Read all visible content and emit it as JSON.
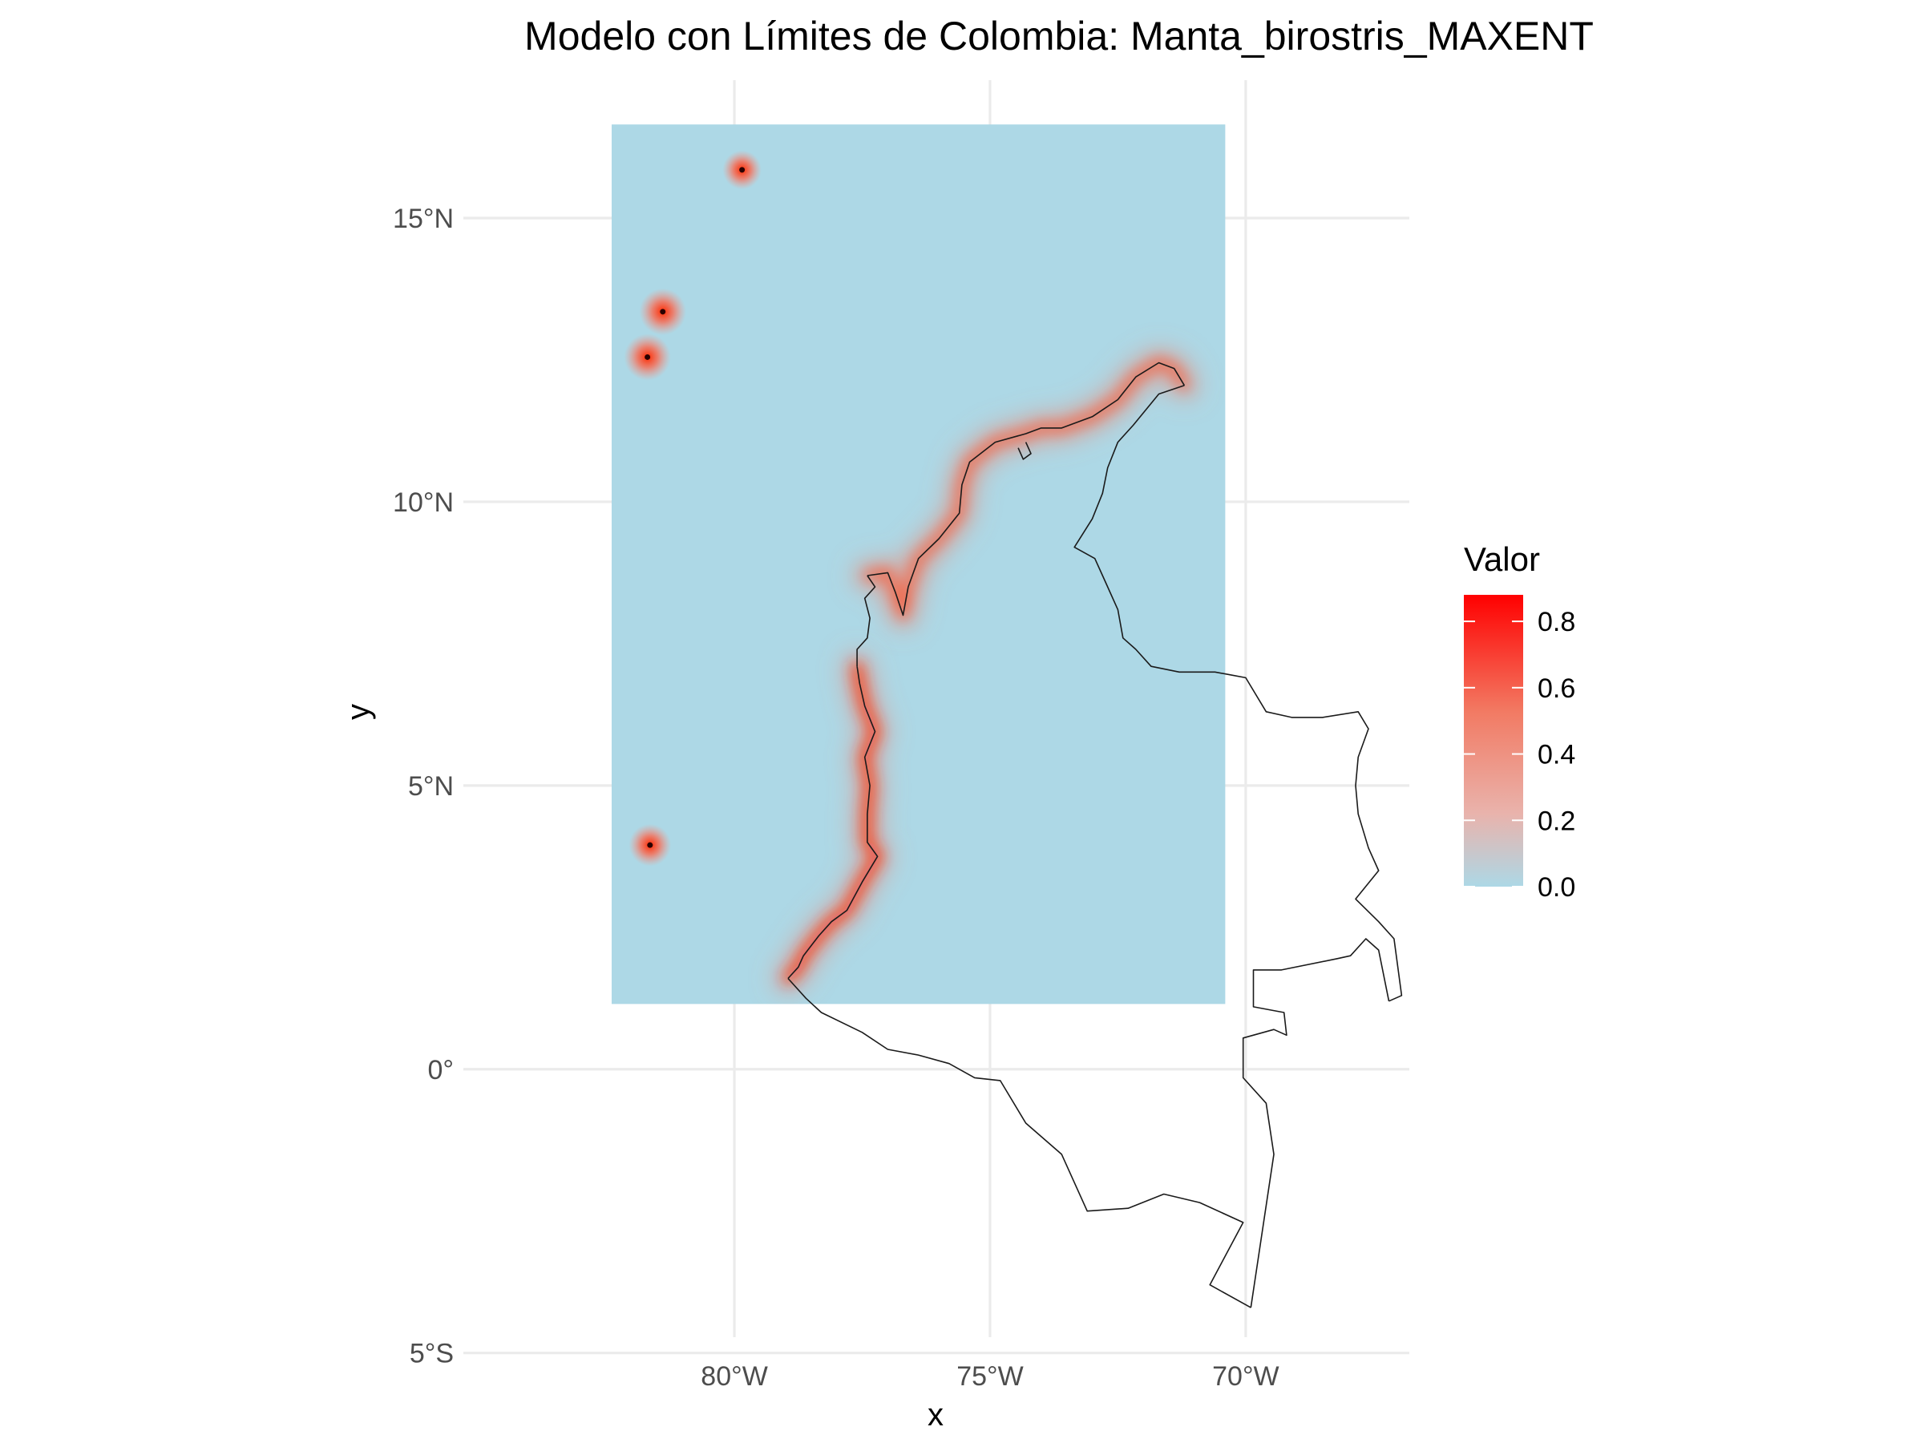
{
  "chart_data": {
    "type": "heatmap",
    "title": "Modelo con Límites de Colombia: Manta_birostris_MAXENT",
    "xlabel": "x",
    "ylabel": "y",
    "xlim": [
      -85.3,
      -66.8
    ],
    "ylim": [
      -5.4,
      17.6
    ],
    "x_ticks": [
      {
        "value": -80,
        "label": "80°W"
      },
      {
        "value": -75,
        "label": "75°W"
      },
      {
        "value": -70,
        "label": "70°W"
      }
    ],
    "y_ticks": [
      {
        "value": 15,
        "label": "15°N"
      },
      {
        "value": 10,
        "label": "10°N"
      },
      {
        "value": 5,
        "label": "5°N"
      },
      {
        "value": 0,
        "label": "0°"
      },
      {
        "value": -5,
        "label": "5°S"
      }
    ],
    "raster_extent": {
      "xmin": -82.4,
      "xmax": -70.4,
      "ymin": 1.15,
      "ymax": 16.65
    },
    "background_value": 0.0,
    "legend": {
      "title": "Valor",
      "position": "right",
      "min": 0.0,
      "max": 0.88,
      "ticks": [
        0.0,
        0.2,
        0.4,
        0.6,
        0.8
      ],
      "tick_labels": [
        "0.0",
        "0.2",
        "0.4",
        "0.6",
        "0.8"
      ],
      "low_color": "#add8e6",
      "high_color": "#ff0000"
    },
    "hotspots": [
      {
        "lon": -79.85,
        "lat": 15.85,
        "value": 0.45
      },
      {
        "lon": -81.4,
        "lat": 13.35,
        "value": 0.8
      },
      {
        "lon": -81.7,
        "lat": 12.55,
        "value": 0.8
      },
      {
        "lon": -81.65,
        "lat": 3.95,
        "value": 0.6
      }
    ],
    "coastline_suitability": [
      {
        "path": "caribbean",
        "value": 0.7
      },
      {
        "path": "pacific",
        "value": 0.85
      }
    ],
    "boundary": {
      "pacific": [
        [
          -78.95,
          1.6
        ],
        [
          -78.75,
          1.8
        ],
        [
          -78.65,
          2.0
        ],
        [
          -78.35,
          2.35
        ],
        [
          -78.1,
          2.6
        ],
        [
          -77.8,
          2.8
        ],
        [
          -77.5,
          3.3
        ],
        [
          -77.2,
          3.75
        ],
        [
          -77.4,
          4.0
        ],
        [
          -77.4,
          4.5
        ],
        [
          -77.35,
          5.0
        ],
        [
          -77.45,
          5.5
        ],
        [
          -77.25,
          5.95
        ],
        [
          -77.45,
          6.4
        ],
        [
          -77.55,
          6.8
        ],
        [
          -77.6,
          7.1
        ]
      ],
      "darien": [
        [
          -77.6,
          7.1
        ],
        [
          -77.6,
          7.4
        ],
        [
          -77.4,
          7.6
        ],
        [
          -77.35,
          7.95
        ],
        [
          -77.45,
          8.3
        ],
        [
          -77.25,
          8.5
        ],
        [
          -77.4,
          8.7
        ]
      ],
      "caribbean": [
        [
          -77.4,
          8.7
        ],
        [
          -77.0,
          8.75
        ],
        [
          -76.85,
          8.4
        ],
        [
          -76.7,
          8.0
        ],
        [
          -76.6,
          8.5
        ],
        [
          -76.4,
          9.0
        ],
        [
          -76.0,
          9.35
        ],
        [
          -75.6,
          9.8
        ],
        [
          -75.55,
          10.3
        ],
        [
          -75.4,
          10.7
        ],
        [
          -74.9,
          11.05
        ],
        [
          -74.3,
          11.2
        ],
        [
          -74.0,
          11.3
        ],
        [
          -73.6,
          11.3
        ],
        [
          -73.0,
          11.5
        ],
        [
          -72.5,
          11.8
        ],
        [
          -72.15,
          12.2
        ],
        [
          -71.7,
          12.45
        ],
        [
          -71.4,
          12.35
        ],
        [
          -71.2,
          12.05
        ]
      ],
      "venezuela_border": [
        [
          -71.2,
          12.05
        ],
        [
          -71.7,
          11.9
        ],
        [
          -72.2,
          11.35
        ],
        [
          -72.5,
          11.05
        ],
        [
          -72.7,
          10.6
        ],
        [
          -72.8,
          10.15
        ],
        [
          -73.0,
          9.7
        ],
        [
          -73.35,
          9.2
        ],
        [
          -72.95,
          9.0
        ],
        [
          -72.75,
          8.6
        ],
        [
          -72.5,
          8.1
        ],
        [
          -72.4,
          7.6
        ],
        [
          -72.15,
          7.4
        ],
        [
          -71.85,
          7.1
        ],
        [
          -71.3,
          7.0
        ],
        [
          -70.6,
          7.0
        ],
        [
          -70.3,
          6.95
        ],
        [
          -70.0,
          6.9
        ],
        [
          -69.6,
          6.3
        ],
        [
          -69.1,
          6.2
        ],
        [
          -68.5,
          6.2
        ],
        [
          -67.8,
          6.3
        ],
        [
          -67.6,
          6.0
        ],
        [
          -67.8,
          5.5
        ],
        [
          -67.85,
          5.0
        ],
        [
          -67.8,
          4.5
        ],
        [
          -67.6,
          3.9
        ],
        [
          -67.4,
          3.5
        ],
        [
          -67.85,
          3.0
        ],
        [
          -67.4,
          2.6
        ],
        [
          -67.1,
          2.3
        ],
        [
          -66.95,
          1.3
        ],
        [
          -67.2,
          1.2
        ]
      ],
      "brazil_border": [
        [
          -67.2,
          1.2
        ],
        [
          -67.4,
          2.1
        ],
        [
          -67.65,
          2.3
        ],
        [
          -67.95,
          2.0
        ],
        [
          -68.2,
          1.95
        ],
        [
          -69.3,
          1.75
        ],
        [
          -69.85,
          1.75
        ],
        [
          -69.85,
          1.1
        ],
        [
          -69.25,
          1.0
        ],
        [
          -69.2,
          0.6
        ],
        [
          -69.45,
          0.7
        ],
        [
          -70.05,
          0.55
        ],
        [
          -70.05,
          -0.15
        ],
        [
          -69.6,
          -0.6
        ],
        [
          -69.45,
          -1.5
        ],
        [
          -69.9,
          -4.2
        ]
      ],
      "peru_border": [
        [
          -69.9,
          -4.2
        ],
        [
          -70.7,
          -3.8
        ],
        [
          -70.05,
          -2.7
        ],
        [
          -70.9,
          -2.35
        ],
        [
          -71.6,
          -2.2
        ],
        [
          -72.3,
          -2.45
        ],
        [
          -73.1,
          -2.5
        ],
        [
          -73.6,
          -1.5
        ],
        [
          -74.3,
          -0.95
        ],
        [
          -74.8,
          -0.2
        ],
        [
          -75.3,
          -0.15
        ],
        [
          -75.8,
          0.1
        ],
        [
          -76.4,
          0.25
        ],
        [
          -77.0,
          0.35
        ],
        [
          -77.5,
          0.65
        ],
        [
          -78.3,
          1.0
        ],
        [
          -78.6,
          1.25
        ],
        [
          -78.95,
          1.6
        ]
      ],
      "magdalena_lagoon": [
        [
          -74.45,
          10.95
        ],
        [
          -74.35,
          10.75
        ],
        [
          -74.2,
          10.85
        ],
        [
          -74.3,
          11.05
        ]
      ]
    }
  }
}
